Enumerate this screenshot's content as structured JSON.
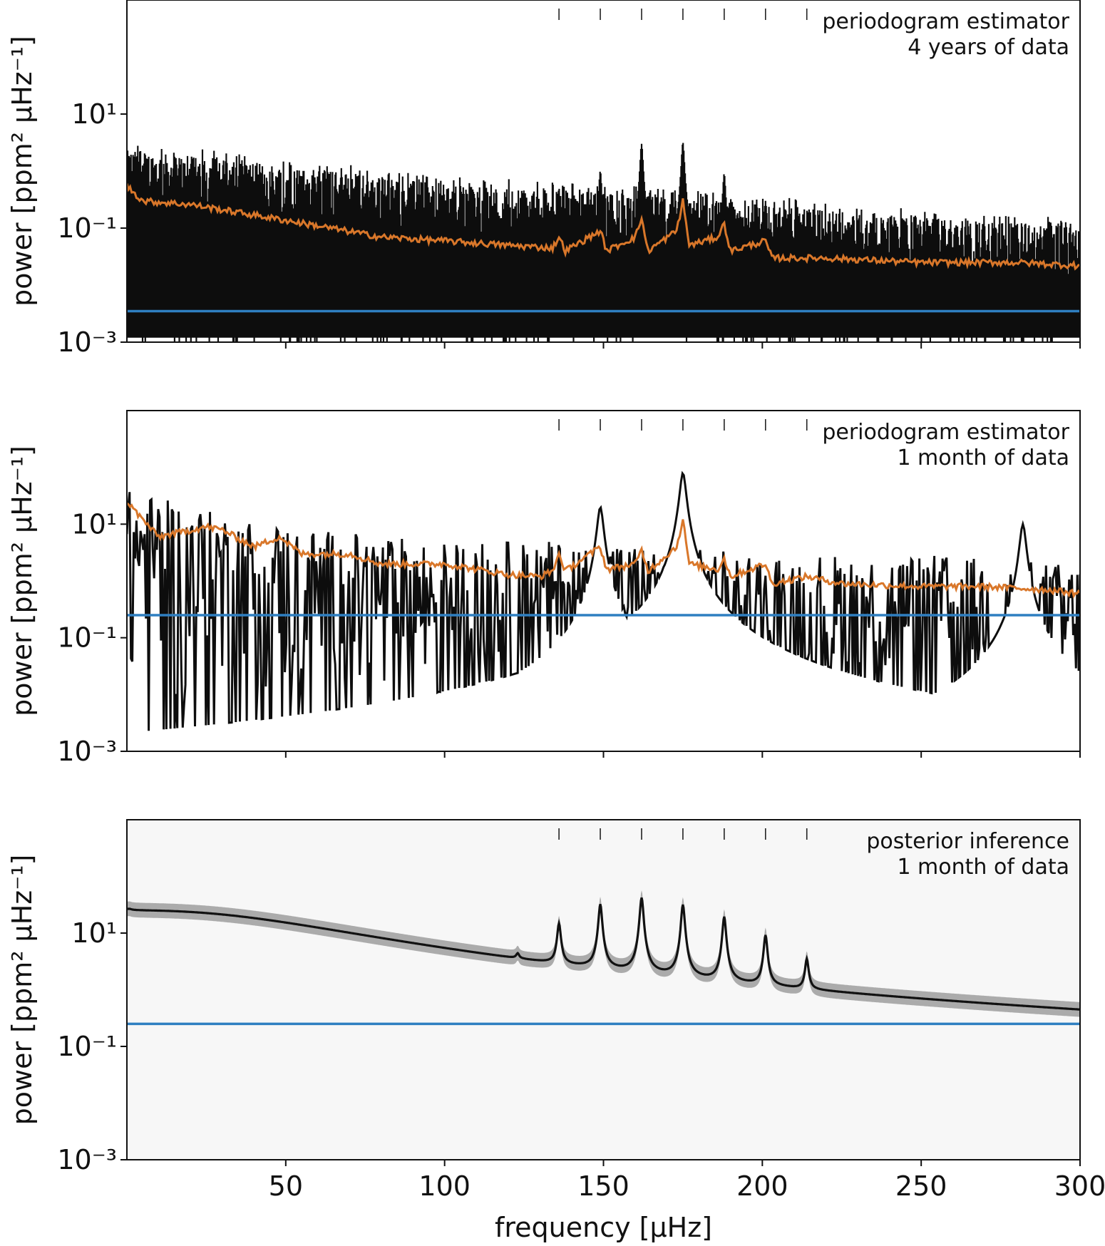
{
  "chart_data": [
    {
      "type": "line",
      "yscale": "log",
      "annotation": [
        "periodogram estimator",
        "4 years of data"
      ],
      "ylabel": "power [ppm² μHz⁻¹]",
      "ylim": [
        0.001,
        1000
      ],
      "xlim": [
        0,
        300
      ],
      "yticks": [
        {
          "value": 10,
          "label": "10¹"
        },
        {
          "value": 0.1,
          "label": "10⁻¹"
        },
        {
          "value": 0.001,
          "label": "10⁻³"
        }
      ],
      "mode_markers": [
        136,
        149,
        162,
        175,
        188,
        201,
        214
      ],
      "colors": {
        "periodogram": "#0d0d0d",
        "smoothed": "#d9772a",
        "noise": "#2f7fc1"
      },
      "noise_level": 0.0035,
      "series": [
        {
          "name": "periodogram (4 years)",
          "style": "dense-black",
          "envelope_top": [
            [
              0,
              2.2
            ],
            [
              50,
              1.2
            ],
            [
              100,
              0.55
            ],
            [
              150,
              0.4
            ],
            [
              200,
              0.25
            ],
            [
              250,
              0.15
            ],
            [
              300,
              0.1
            ]
          ],
          "peaks": [
            {
              "x": 136,
              "y": 0.5
            },
            {
              "x": 149,
              "y": 1.0
            },
            {
              "x": 162,
              "y": 3.0
            },
            {
              "x": 175,
              "y": 3.2
            },
            {
              "x": 188,
              "y": 0.9
            },
            {
              "x": 201,
              "y": 0.3
            }
          ]
        },
        {
          "name": "smoothed periodogram",
          "color": "#d9772a",
          "points": [
            [
              0,
              0.55
            ],
            [
              5,
              0.3
            ],
            [
              20,
              0.26
            ],
            [
              40,
              0.17
            ],
            [
              60,
              0.11
            ],
            [
              80,
              0.07
            ],
            [
              100,
              0.06
            ],
            [
              120,
              0.05
            ],
            [
              134,
              0.045
            ],
            [
              136,
              0.07
            ],
            [
              138,
              0.04
            ],
            [
              149,
              0.09
            ],
            [
              151,
              0.04
            ],
            [
              160,
              0.07
            ],
            [
              162,
              0.15
            ],
            [
              164,
              0.04
            ],
            [
              173,
              0.09
            ],
            [
              175,
              0.3
            ],
            [
              177,
              0.05
            ],
            [
              186,
              0.07
            ],
            [
              188,
              0.12
            ],
            [
              190,
              0.04
            ],
            [
              201,
              0.06
            ],
            [
              203,
              0.03
            ],
            [
              220,
              0.03
            ],
            [
              250,
              0.025
            ],
            [
              280,
              0.025
            ],
            [
              300,
              0.022
            ]
          ]
        },
        {
          "name": "noise level",
          "color": "#2f7fc1",
          "value": 0.0035
        }
      ]
    },
    {
      "type": "line",
      "yscale": "log",
      "annotation": [
        "periodogram estimator",
        "1 month of data"
      ],
      "ylabel": "power [ppm² μHz⁻¹]",
      "ylim": [
        0.001,
        1000
      ],
      "xlim": [
        0,
        300
      ],
      "yticks": [
        {
          "value": 10,
          "label": "10¹"
        },
        {
          "value": 0.1,
          "label": "10⁻¹"
        },
        {
          "value": 0.001,
          "label": "10⁻³"
        }
      ],
      "mode_markers": [
        136,
        149,
        162,
        175,
        188,
        201,
        214
      ],
      "colors": {
        "periodogram": "#0d0d0d",
        "smoothed": "#d9772a",
        "noise": "#2f7fc1"
      },
      "noise_level": 0.25,
      "series": [
        {
          "name": "periodogram (1 month)",
          "style": "spiky-black",
          "envelope_top": [
            [
              0,
              40
            ],
            [
              30,
              15
            ],
            [
              60,
              8
            ],
            [
              100,
              5
            ],
            [
              150,
              5
            ],
            [
              200,
              3
            ],
            [
              250,
              3
            ],
            [
              300,
              2
            ]
          ],
          "peaks": [
            {
              "x": 149,
              "y": 20
            },
            {
              "x": 175,
              "y": 80
            },
            {
              "x": 282,
              "y": 10
            }
          ]
        },
        {
          "name": "smoothed periodogram",
          "color": "#d9772a",
          "points": [
            [
              0,
              25
            ],
            [
              5,
              12
            ],
            [
              10,
              6
            ],
            [
              25,
              9
            ],
            [
              30,
              8
            ],
            [
              40,
              4
            ],
            [
              48,
              6
            ],
            [
              55,
              3
            ],
            [
              70,
              3
            ],
            [
              80,
              2
            ],
            [
              100,
              2
            ],
            [
              120,
              1.3
            ],
            [
              130,
              1.2
            ],
            [
              134,
              1.5
            ],
            [
              136,
              3
            ],
            [
              138,
              1.5
            ],
            [
              149,
              4
            ],
            [
              151,
              1.6
            ],
            [
              160,
              2
            ],
            [
              162,
              3.5
            ],
            [
              164,
              1.5
            ],
            [
              173,
              4
            ],
            [
              175,
              12
            ],
            [
              177,
              2
            ],
            [
              186,
              1.6
            ],
            [
              188,
              2.5
            ],
            [
              190,
              1.2
            ],
            [
              201,
              2
            ],
            [
              203,
              0.9
            ],
            [
              214,
              1.2
            ],
            [
              225,
              0.9
            ],
            [
              250,
              0.8
            ],
            [
              270,
              0.8
            ],
            [
              290,
              0.7
            ],
            [
              300,
              0.6
            ]
          ]
        },
        {
          "name": "noise level",
          "color": "#2f7fc1",
          "value": 0.25
        }
      ]
    },
    {
      "type": "line",
      "yscale": "log",
      "annotation": [
        "posterior inference",
        "1 month of data"
      ],
      "ylabel": "power [ppm² μHz⁻¹]",
      "xlabel": "frequency [μHz]",
      "ylim": [
        0.001,
        1000
      ],
      "xlim": [
        0,
        300
      ],
      "xticks": [
        50,
        100,
        150,
        200,
        250,
        300
      ],
      "yticks": [
        {
          "value": 10,
          "label": "10¹"
        },
        {
          "value": 0.1,
          "label": "10⁻¹"
        },
        {
          "value": 0.001,
          "label": "10⁻³"
        }
      ],
      "mode_markers": [
        136,
        149,
        162,
        175,
        188,
        201,
        214
      ],
      "colors": {
        "posterior": "#111111",
        "band": "#8a8a8a",
        "noise": "#2f7fc1"
      },
      "noise_level": 0.25,
      "series": [
        {
          "name": "posterior median",
          "background": {
            "amplitude": 25,
            "knee": 60,
            "exponent": 2.5,
            "floor": 0.02
          },
          "modes": [
            {
              "x": 123,
              "height": 0.8
            },
            {
              "x": 136,
              "height": 12
            },
            {
              "x": 149,
              "height": 30
            },
            {
              "x": 162,
              "height": 40
            },
            {
              "x": 175,
              "height": 30
            },
            {
              "x": 188,
              "height": 18
            },
            {
              "x": 201,
              "height": 8
            },
            {
              "x": 214,
              "height": 2.5
            }
          ]
        },
        {
          "name": "posterior credible band",
          "color": "#8a8a8a",
          "width_factor": 1.35
        },
        {
          "name": "noise level",
          "color": "#2f7fc1",
          "value": 0.25
        }
      ]
    }
  ]
}
